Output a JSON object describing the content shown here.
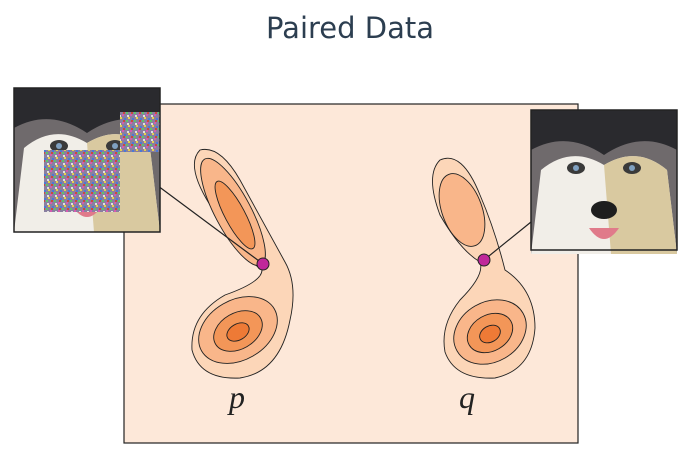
{
  "title": "Paired Data",
  "distributions": [
    {
      "label": "p"
    },
    {
      "label": "q"
    }
  ]
}
